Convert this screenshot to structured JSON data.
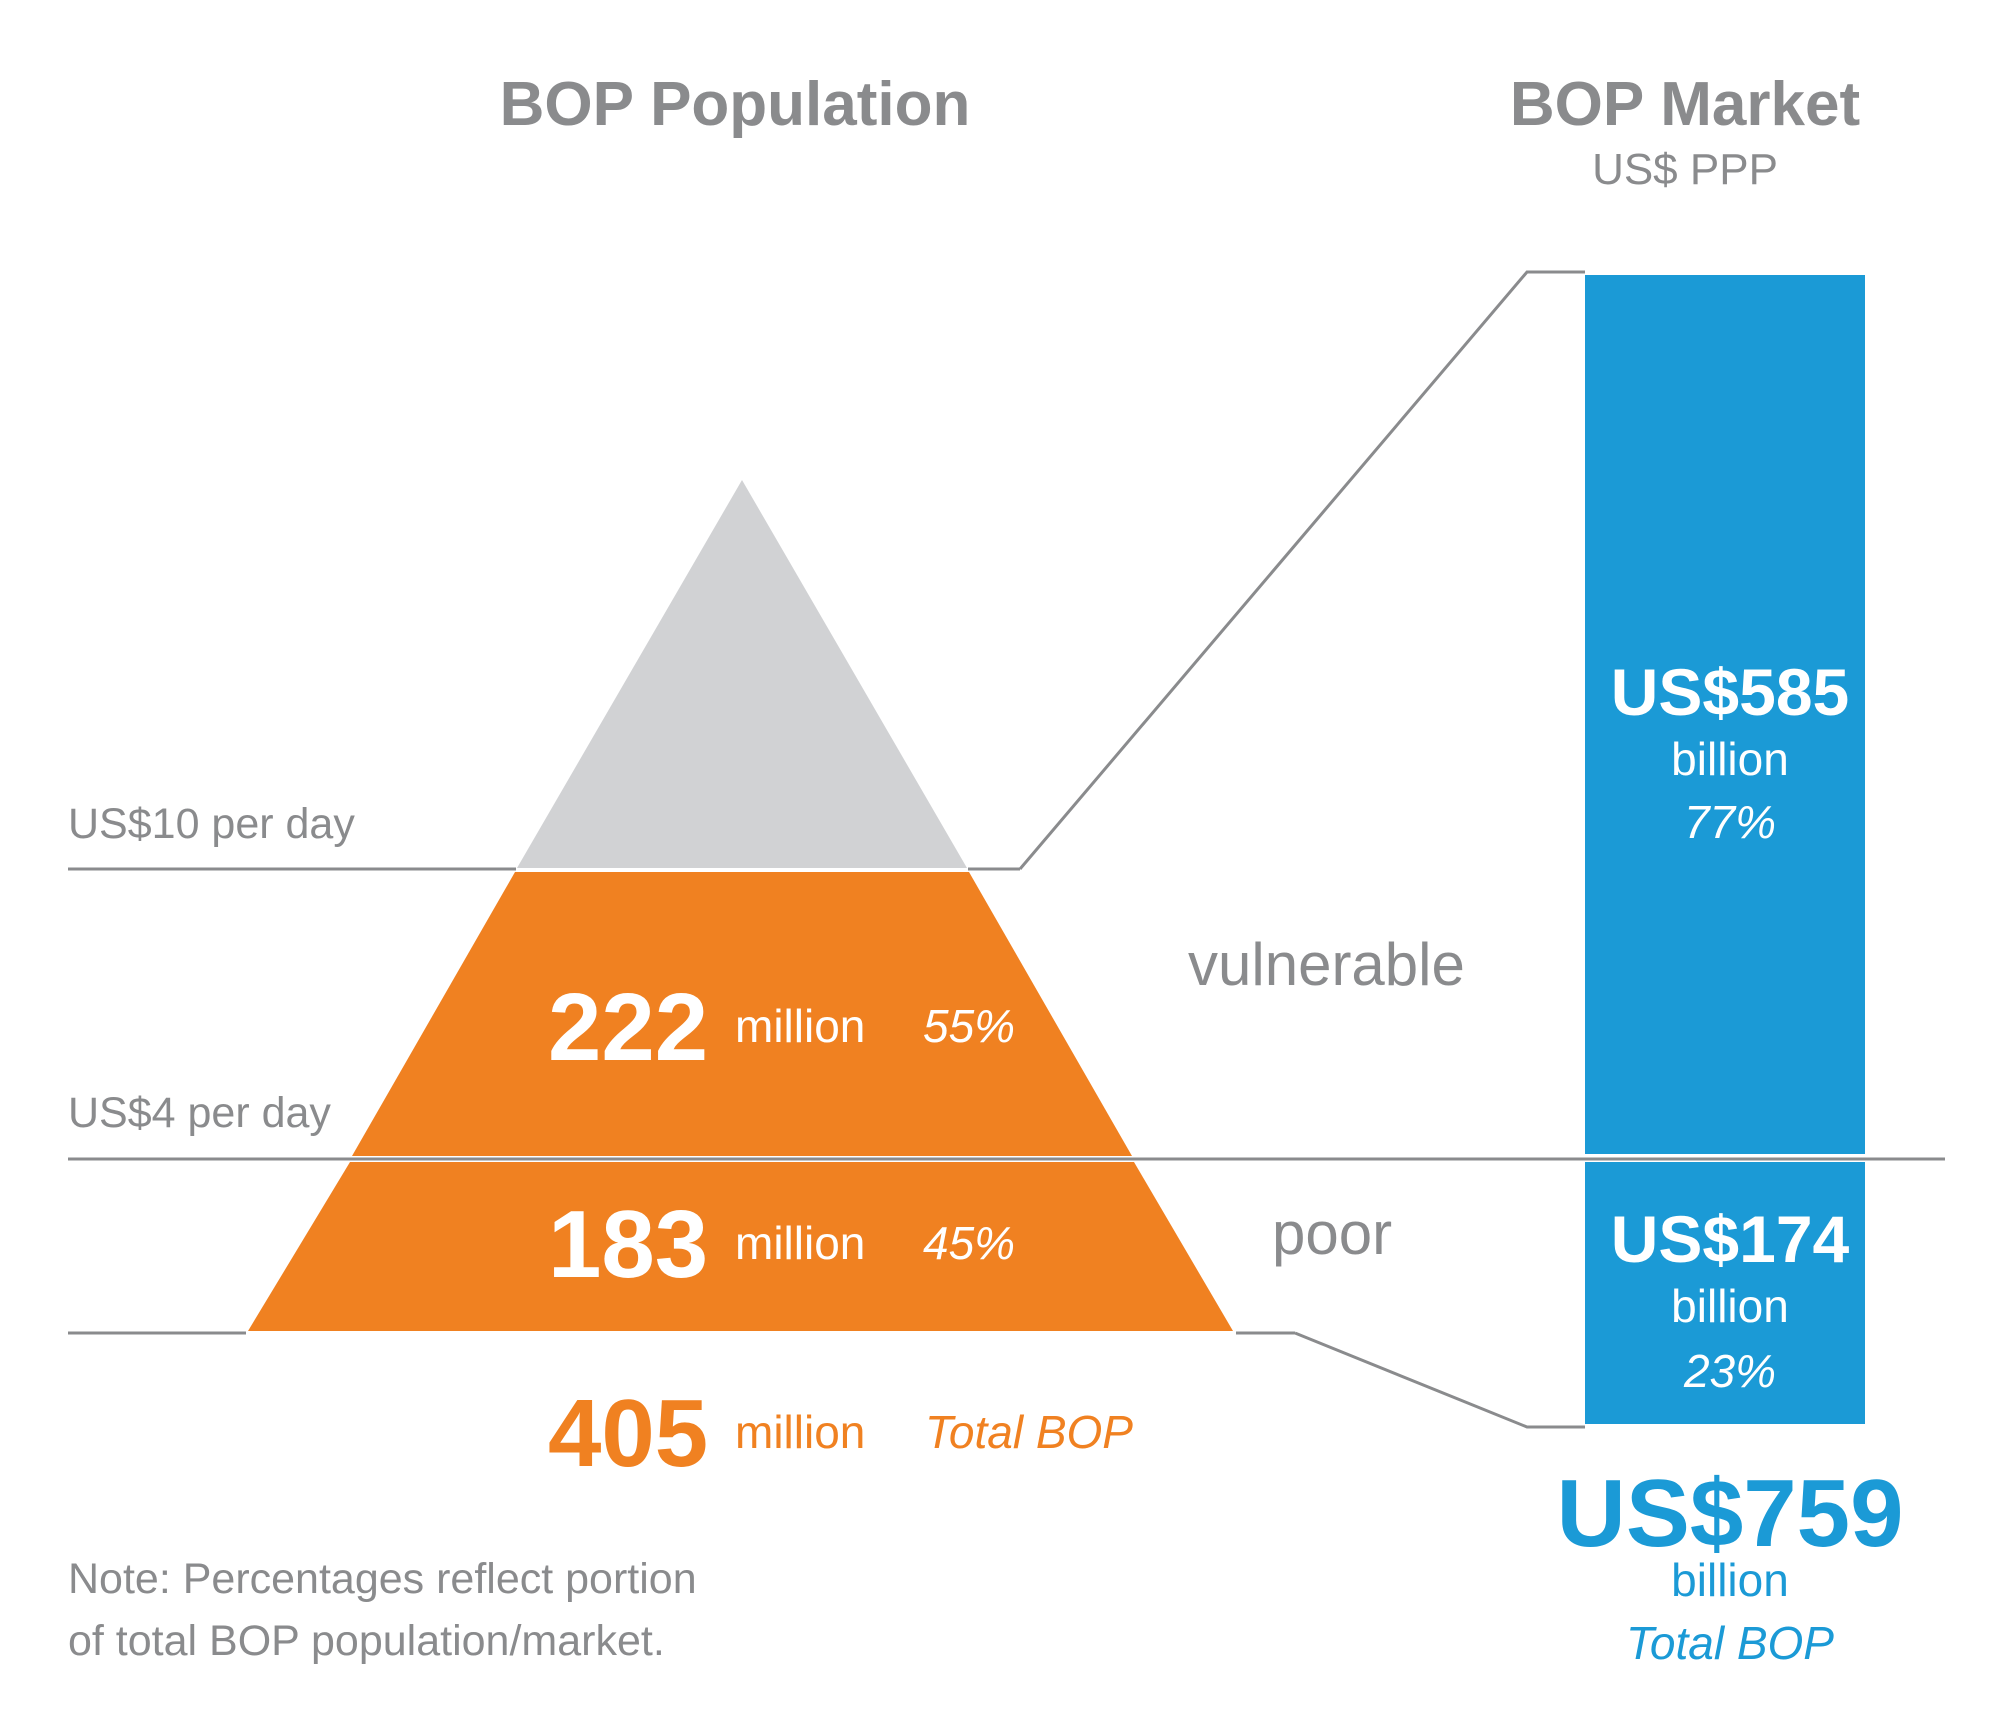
{
  "colors": {
    "orange": "#f08121",
    "blue": "#1b9ad6",
    "gray_tip": "#d1d2d4",
    "gray_text": "#8a8b8d"
  },
  "population": {
    "title": "BOP Population",
    "thresholds": {
      "upper": "US$10 per day",
      "lower": "US$4 per day"
    },
    "vulnerable": {
      "value": "222",
      "unit": "million",
      "percent": "55%",
      "label": "vulnerable"
    },
    "poor": {
      "value": "183",
      "unit": "million",
      "percent": "45%",
      "label": "poor"
    },
    "total": {
      "value": "405",
      "unit": "million",
      "label": "Total BOP"
    }
  },
  "market": {
    "title": "BOP Market",
    "subtitle": "US$ PPP",
    "vulnerable": {
      "value": "US$585",
      "unit": "billion",
      "percent": "77%"
    },
    "poor": {
      "value": "US$174",
      "unit": "billion",
      "percent": "23%"
    },
    "total": {
      "value": "US$759",
      "unit": "billion",
      "label": "Total BOP"
    }
  },
  "note": {
    "line1": "Note: Percentages reflect portion",
    "line2": "of total BOP population/market."
  }
}
